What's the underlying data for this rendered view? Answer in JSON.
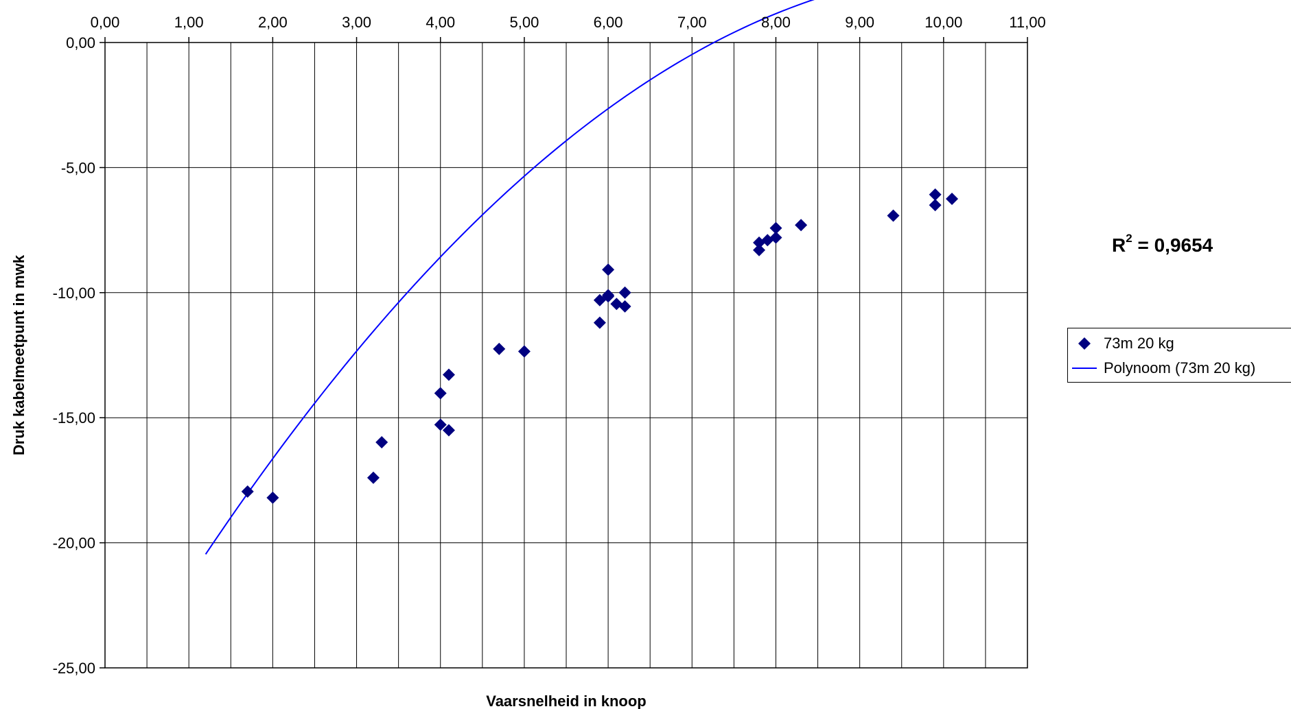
{
  "chart_data": {
    "type": "scatter",
    "xlabel": "Vaarsnelheid in knoop",
    "ylabel": "Druk kabelmeetpunt in mwk",
    "xlim": [
      0,
      11
    ],
    "ylim": [
      -25,
      0
    ],
    "x_ticks": [
      "0,00",
      "1,00",
      "2,00",
      "3,00",
      "4,00",
      "5,00",
      "6,00",
      "7,00",
      "8,00",
      "9,00",
      "10,00",
      "11,00"
    ],
    "y_ticks": [
      "0,00",
      "-5,00",
      "-10,00",
      "-15,00",
      "-20,00",
      "-25,00"
    ],
    "x_axis_position": "top",
    "grid": true,
    "legend_position": "right",
    "annotation": {
      "prefix": "R",
      "superscript": "2",
      "suffix": " = 0,9654"
    },
    "series": [
      {
        "name": "73m 20 kg",
        "kind": "scatter",
        "marker": "diamond",
        "color": "#000080",
        "points": [
          [
            1.7,
            -17.95
          ],
          [
            2.0,
            -18.2
          ],
          [
            3.2,
            -17.4
          ],
          [
            3.3,
            -15.98
          ],
          [
            4.0,
            -14.02
          ],
          [
            4.0,
            -15.28
          ],
          [
            4.1,
            -15.5
          ],
          [
            4.1,
            -13.28
          ],
          [
            4.7,
            -12.25
          ],
          [
            5.0,
            -12.35
          ],
          [
            5.9,
            -10.3
          ],
          [
            5.9,
            -11.2
          ],
          [
            6.0,
            -10.1
          ],
          [
            6.0,
            -9.08
          ],
          [
            6.0,
            -10.15
          ],
          [
            6.1,
            -10.45
          ],
          [
            6.2,
            -10.0
          ],
          [
            6.2,
            -10.55
          ],
          [
            7.8,
            -8.0
          ],
          [
            7.8,
            -8.3
          ],
          [
            7.9,
            -7.9
          ],
          [
            8.0,
            -7.42
          ],
          [
            8.0,
            -7.8
          ],
          [
            8.3,
            -7.3
          ],
          [
            9.4,
            -6.92
          ],
          [
            9.9,
            -6.08
          ],
          [
            9.9,
            -6.5
          ],
          [
            10.1,
            -6.25
          ]
        ]
      },
      {
        "name": "Polynoom (73m 20 kg)",
        "kind": "trendline",
        "color": "#0000FF",
        "x_range": [
          1.2,
          10.6
        ],
        "coefficients": [
          -26.83,
          5.63,
          -0.2665
        ]
      }
    ]
  }
}
